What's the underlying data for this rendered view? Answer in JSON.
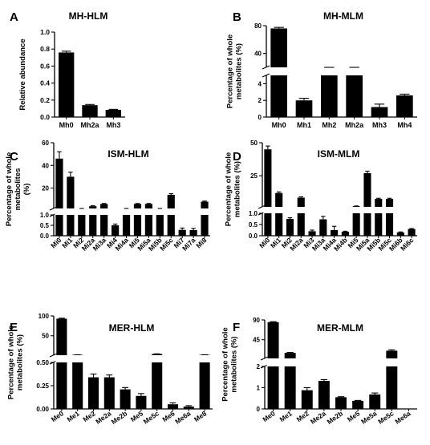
{
  "chart_data": [
    {
      "letter": "A",
      "title": "MH-HLM",
      "type": "bar",
      "ylabel": "Relative abundance",
      "categories": [
        "Mh0",
        "Mh2a",
        "Mh3"
      ],
      "values": [
        0.76,
        0.14,
        0.085
      ],
      "errors": [
        0.015,
        0.008,
        0.006
      ],
      "ylim": [
        0,
        1.0
      ],
      "yticks": [
        "0.0",
        "0.2",
        "0.4",
        "0.6",
        "0.8",
        "1.0"
      ],
      "segments": [
        {
          "min": 0,
          "max": 1.0,
          "ticks": [
            0,
            0.2,
            0.4,
            0.6,
            0.8,
            1.0
          ]
        }
      ]
    },
    {
      "letter": "B",
      "title": "MH-MLM",
      "type": "bar",
      "ylabel": "Percentage of whole metabolites (%)",
      "ylabel_lines": [
        "Percentage of whole",
        "metabolites (%)"
      ],
      "categories": [
        "Mh0",
        "Mh1",
        "Mh2",
        "Mh2a",
        "Mh3",
        "Mh4"
      ],
      "values": [
        76,
        2.0,
        8.0,
        8.5,
        1.2,
        2.6
      ],
      "errors": [
        1.5,
        0.25,
        0.4,
        0.4,
        0.35,
        0.15
      ],
      "yticks": [
        "0",
        "2",
        "4",
        "40",
        "80"
      ],
      "segments": [
        {
          "min": 0,
          "max": 5,
          "ticks": [
            0,
            2,
            4
          ]
        },
        {
          "min": 20,
          "max": 80,
          "ticks": [
            40,
            80
          ]
        }
      ]
    },
    {
      "letter": "C",
      "title": "ISM-HLM",
      "type": "bar",
      "ylabel": "Percentage of whole metabolites (%)",
      "ylabel_lines": [
        "Percentage of whole",
        "metabolites",
        "(%)"
      ],
      "categories": [
        "Mi0",
        "Mi1",
        "Mi2",
        "Mi2a",
        "Mi3a",
        "Mi4",
        "Mi4a",
        "Mi5",
        "Mi5a",
        "Mi5b",
        "Mi5c",
        "Mi7",
        "Mi7a",
        "Mi8"
      ],
      "values": [
        46,
        30,
        1.5,
        4,
        6,
        0.5,
        1.5,
        6,
        6,
        1.5,
        14,
        0.28,
        0.27,
        8
      ],
      "errors": [
        6,
        4,
        0.1,
        0.4,
        0.4,
        0.06,
        0.1,
        0.4,
        0.4,
        0.1,
        1,
        0.09,
        0.08,
        0.5
      ],
      "yticks": [
        "0.0",
        "0.5",
        "1.0",
        "20",
        "40",
        "60"
      ],
      "segments": [
        {
          "min": 0,
          "max": 1.0,
          "ticks": [
            0,
            0.5,
            1.0
          ]
        },
        {
          "min": 2,
          "max": 60,
          "ticks": [
            20,
            40,
            60
          ]
        }
      ]
    },
    {
      "letter": "D",
      "title": "ISM-MLM",
      "type": "bar",
      "ylabel": "Percentage of whole metabolites (%)",
      "ylabel_lines": [
        "Percentage of whole",
        "metabolites (%)"
      ],
      "categories": [
        "Mi0",
        "Mi1",
        "Mi2",
        "Mi2a",
        "Mi3",
        "Mi3a",
        "Mi4a",
        "Mi4b",
        "Mi5",
        "Mi5a",
        "Mi5b",
        "Mi5c",
        "Mi6b",
        "Mi6c"
      ],
      "values": [
        45,
        12,
        0.75,
        8.5,
        0.2,
        0.73,
        0.25,
        0.18,
        2.0,
        27,
        7.5,
        7.5,
        0.15,
        0.3
      ],
      "errors": [
        2.5,
        0.8,
        0.05,
        0.6,
        0.05,
        0.13,
        0.17,
        0.02,
        0.2,
        1.5,
        0.5,
        0.5,
        0.02,
        0.02
      ],
      "yticks": [
        "0.0",
        "0.5",
        "1.0",
        "25",
        "50"
      ],
      "segments": [
        {
          "min": 0,
          "max": 1.0,
          "ticks": [
            0,
            0.5,
            1.0
          ]
        },
        {
          "min": 1.5,
          "max": 50,
          "ticks": [
            25,
            50
          ]
        }
      ]
    },
    {
      "letter": "E",
      "title": "MER-HLM",
      "type": "bar",
      "ylabel": "Percentage of whole metabolites (%)",
      "ylabel_lines": [
        "Percentage of whole",
        "metabolites (%)"
      ],
      "categories": [
        "Me0",
        "Me1",
        "Me2",
        "Me2a",
        "Me2b",
        "Me5",
        "Me5c",
        "Me6",
        "Me6a",
        "Me8"
      ],
      "values": [
        93,
        2.0,
        0.34,
        0.34,
        0.21,
        0.14,
        4.0,
        0.05,
        0.025,
        2.0
      ],
      "errors": [
        1.2,
        0.1,
        0.035,
        0.025,
        0.02,
        0.025,
        0.4,
        0.015,
        0.01,
        0.1
      ],
      "yticks": [
        "0.00",
        "0.25",
        "0.50",
        "50",
        "100"
      ],
      "segments": [
        {
          "min": 0,
          "max": 0.5,
          "ticks": [
            0,
            0.25,
            0.5
          ]
        },
        {
          "min": 1,
          "max": 100,
          "ticks": [
            50,
            100
          ]
        }
      ]
    },
    {
      "letter": "F",
      "title": "MER-MLM",
      "type": "bar",
      "ylabel": "Percentage of whole metabolites (%)",
      "ylabel_lines": [
        "Percentage of whole",
        "metabolites (%)"
      ],
      "categories": [
        "Me0",
        "Me1",
        "Me2",
        "Me2a",
        "Me2b",
        "Me5",
        "Me5a",
        "Me5c",
        "Me6a"
      ],
      "values": [
        85,
        15,
        0.88,
        1.32,
        0.55,
        0.38,
        0.68,
        20,
        0
      ],
      "errors": [
        1.0,
        1.0,
        0.12,
        0.06,
        0.025,
        0.02,
        0.07,
        2.0,
        0
      ],
      "yticks": [
        "0",
        "1",
        "2",
        "45",
        "90"
      ],
      "segments": [
        {
          "min": 0,
          "max": 2,
          "ticks": [
            0,
            1,
            2
          ]
        },
        {
          "min": 2.5,
          "max": 90,
          "ticks": [
            45,
            90
          ]
        }
      ]
    }
  ]
}
